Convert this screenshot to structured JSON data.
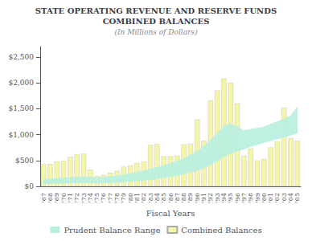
{
  "chart_data": {
    "type": "bar",
    "title": "STATE OPERATING REVENUE AND RESERVE FUNDS\nCOMBINED BALANCES",
    "subtitle": "(In Millions of Dollars)",
    "xlabel": "Fiscal Years",
    "categories": [
      "'67",
      "'68",
      "'69",
      "'70",
      "'71",
      "'72",
      "'73",
      "'74",
      "'75",
      "'76",
      "'77",
      "'78",
      "'79",
      "'80",
      "'81",
      "'82",
      "'83",
      "'84",
      "'85",
      "'86",
      "'87",
      "'88",
      "'89",
      "'90",
      "'91",
      "'92",
      "'93",
      "'94",
      "'95",
      "'96",
      "'97",
      "'98",
      "'99",
      "'00",
      "'01",
      "'02",
      "'03",
      "'04",
      "'05"
    ],
    "series": [
      {
        "name": "Prudent Balance Range",
        "type": "band",
        "color": "#b8f0e0",
        "lower": [
          50,
          55,
          60,
          65,
          70,
          75,
          75,
          70,
          65,
          70,
          75,
          80,
          90,
          100,
          110,
          120,
          130,
          150,
          170,
          190,
          210,
          240,
          270,
          310,
          360,
          420,
          490,
          580,
          640,
          680,
          720,
          770,
          810,
          850,
          880,
          920,
          950,
          990,
          1030
        ],
        "upper": [
          130,
          140,
          150,
          160,
          170,
          180,
          185,
          175,
          165,
          175,
          185,
          200,
          220,
          245,
          270,
          300,
          330,
          360,
          400,
          440,
          490,
          540,
          600,
          680,
          770,
          890,
          1020,
          1160,
          1200,
          1150,
          1070,
          1100,
          1120,
          1150,
          1200,
          1250,
          1300,
          1360,
          1530
        ]
      },
      {
        "name": "Combined Balances",
        "type": "bar",
        "color": "#f5f5aa",
        "values": [
          430,
          430,
          480,
          490,
          570,
          620,
          630,
          320,
          200,
          220,
          260,
          300,
          380,
          400,
          450,
          480,
          800,
          820,
          580,
          580,
          590,
          810,
          820,
          1290,
          880,
          1660,
          1850,
          2080,
          2000,
          1600,
          590,
          730,
          500,
          530,
          750,
          870,
          1520,
          930,
          880
        ]
      }
    ],
    "ylim": [
      0,
      2700
    ],
    "yticks": [
      {
        "value": 0,
        "label": "$0"
      },
      {
        "value": 500,
        "label": "$500"
      },
      {
        "value": 1000,
        "label": "$1,000"
      },
      {
        "value": 1500,
        "label": "$1,500"
      },
      {
        "value": 2000,
        "label": "$2,000"
      },
      {
        "value": 2500,
        "label": "$2,500"
      }
    ],
    "grid": false,
    "legend": "bottom"
  }
}
